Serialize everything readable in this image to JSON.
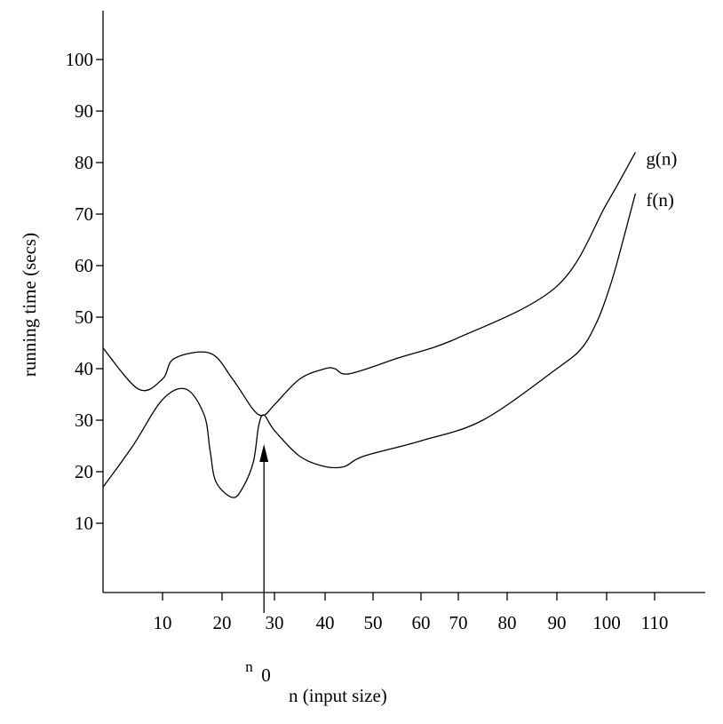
{
  "chart_data": {
    "type": "line",
    "title": "",
    "xlabel": "n (input size)",
    "ylabel": "running time (secs)",
    "x_ticks": [
      "10",
      "20",
      "30",
      "40",
      "50",
      "60",
      "70",
      "80",
      "90",
      "100",
      "110"
    ],
    "y_ticks": [
      "10",
      "20",
      "30",
      "40",
      "50",
      "60",
      "70",
      "80",
      "90",
      "100"
    ],
    "grid": false,
    "legend": "none",
    "series": [
      {
        "name": "g(n)",
        "x": [
          0,
          6,
          10,
          12,
          18,
          22,
          26,
          28,
          30,
          35,
          40,
          42,
          45,
          55,
          70,
          90,
          100,
          106
        ],
        "y": [
          44,
          36,
          38,
          42,
          43,
          38,
          32,
          31,
          33,
          38,
          40,
          40,
          39,
          42,
          46,
          56,
          72,
          82
        ]
      },
      {
        "name": "f(n)",
        "x": [
          0,
          5,
          10,
          14,
          17,
          18,
          19,
          22,
          24,
          26,
          27,
          28,
          30,
          35,
          40,
          44,
          48,
          60,
          75,
          90,
          95,
          98,
          100,
          102,
          106
        ],
        "y": [
          17,
          25,
          34,
          36,
          31,
          24,
          18,
          15,
          17,
          22,
          29,
          31,
          28,
          23,
          21,
          21,
          23,
          26,
          30,
          40,
          44,
          49,
          54,
          60,
          74
        ]
      }
    ],
    "annotation": {
      "label": "n",
      "subscript": "0",
      "x": 28
    }
  }
}
